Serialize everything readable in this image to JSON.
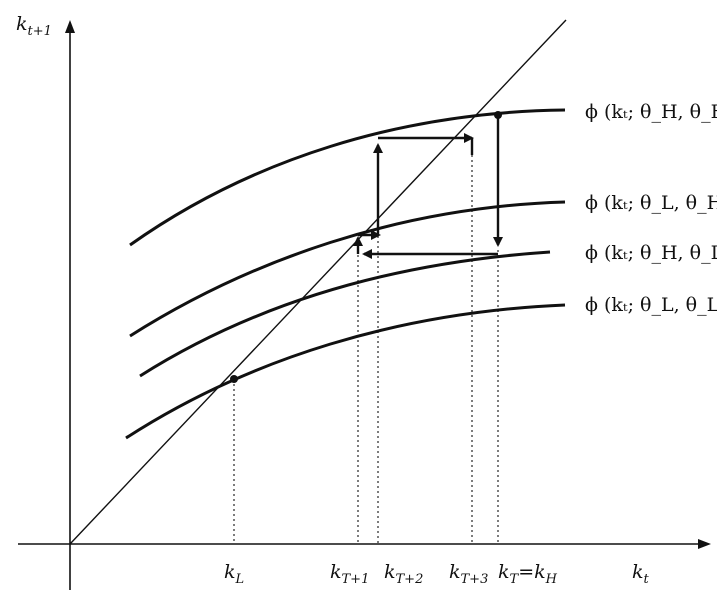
{
  "figure": {
    "axes": {
      "y_label": "k",
      "y_label_sub": "t+1",
      "x_label": "k",
      "x_label_sub": "t"
    },
    "curves": [
      {
        "label": "ϕ (kₜ; θ_H, θ_H)"
      },
      {
        "label": "ϕ (kₜ; θ_L, θ_H)"
      },
      {
        "label": "ϕ (kₜ; θ_H, θ_L)"
      },
      {
        "label": "ϕ (kₜ; θ_L, θ_L)"
      }
    ],
    "ticks": [
      {
        "base": "k",
        "sub": "L"
      },
      {
        "base": "k",
        "sub": "T+1"
      },
      {
        "base": "k",
        "sub": "T+2"
      },
      {
        "base": "k",
        "sub": "T+3"
      },
      {
        "base": "k",
        "sub": "T",
        "suffix": "=k",
        "suffix_sub": "H"
      }
    ]
  }
}
